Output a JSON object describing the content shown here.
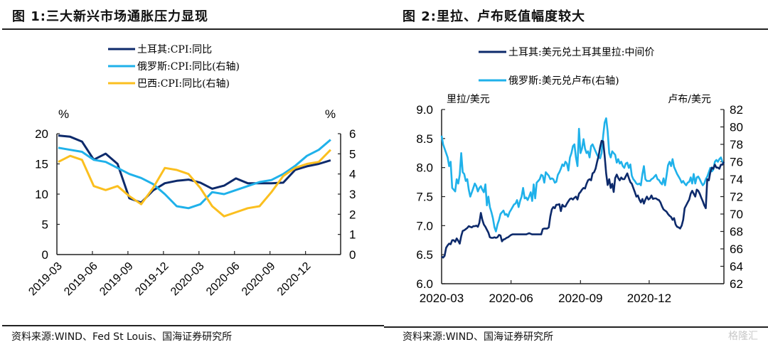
{
  "figure1": {
    "title": "图 1:三大新兴市场通胀压力显现",
    "source": "资料来源:WIND、Fed St Louis、国海证券研究所"
  },
  "figure2": {
    "title": "图 2:里拉、卢布贬值幅度较大",
    "source": "资料来源:WIND、国海证券研究所"
  },
  "watermark": "格隆汇",
  "chart_data": [
    {
      "type": "line",
      "title": "三大新兴市场通胀压力显现",
      "ylabel": "%",
      "y2label": "%",
      "ylim": [
        0,
        20
      ],
      "y2lim": [
        0,
        6
      ],
      "yticks": [
        "0",
        "5",
        "10",
        "15",
        "20"
      ],
      "y2ticks": [
        "0",
        "1",
        "2",
        "3",
        "4",
        "5",
        "6"
      ],
      "xticks": [
        "2019-03",
        "2019-06",
        "2019-09",
        "2019-12",
        "2020-03",
        "2020-06",
        "2020-09",
        "2020-12"
      ],
      "x": [
        "2019-03",
        "2019-04",
        "2019-05",
        "2019-06",
        "2019-07",
        "2019-08",
        "2019-09",
        "2019-10",
        "2019-11",
        "2019-12",
        "2020-01",
        "2020-02",
        "2020-03",
        "2020-04",
        "2020-05",
        "2020-06",
        "2020-07",
        "2020-08",
        "2020-09",
        "2020-10",
        "2020-11",
        "2020-12",
        "2021-01",
        "2021-02"
      ],
      "grid": false,
      "legend_position": "top-center",
      "series": [
        {
          "name": "土耳其:CPI:同比",
          "axis": "left",
          "color": "#0d2a6b",
          "values": [
            19.7,
            19.5,
            18.7,
            15.7,
            16.7,
            15.0,
            9.3,
            8.6,
            10.6,
            11.8,
            12.2,
            12.4,
            11.9,
            10.9,
            11.4,
            12.6,
            11.8,
            11.8,
            11.8,
            11.9,
            14.0,
            14.6,
            15.0,
            15.6
          ]
        },
        {
          "name": "俄罗斯:CPI:同比(右轴)",
          "axis": "right",
          "color": "#1fb1ea",
          "values": [
            5.3,
            5.2,
            5.1,
            4.7,
            4.6,
            4.3,
            4.0,
            3.8,
            3.5,
            3.0,
            2.4,
            2.3,
            2.5,
            3.1,
            3.0,
            3.2,
            3.4,
            3.6,
            3.7,
            4.0,
            4.4,
            4.9,
            5.2,
            5.7
          ]
        },
        {
          "name": "巴西:CPI:同比(右轴)",
          "axis": "right",
          "color": "#fbbf1f",
          "values": [
            4.6,
            4.9,
            4.7,
            3.4,
            3.2,
            3.4,
            2.9,
            2.5,
            3.3,
            4.3,
            4.2,
            4.0,
            3.3,
            2.4,
            1.9,
            2.1,
            2.3,
            2.4,
            3.1,
            3.9,
            4.3,
            4.5,
            4.6,
            5.2
          ]
        }
      ]
    },
    {
      "type": "line",
      "title": "里拉、卢布贬值幅度较大",
      "ylabel": "里拉/美元",
      "y2label": "卢布/美元",
      "ylim": [
        6.0,
        9.0
      ],
      "y2lim": [
        62,
        82
      ],
      "yticks": [
        "6.0",
        "6.5",
        "7.0",
        "7.5",
        "8.0",
        "8.5",
        "9.0"
      ],
      "y2ticks": [
        "62",
        "64",
        "66",
        "68",
        "70",
        "72",
        "74",
        "76",
        "78",
        "80",
        "82"
      ],
      "xticks": [
        "2020-03",
        "2020-06",
        "2020-09",
        "2020-12"
      ],
      "xrange": [
        "2020-03-01",
        "2021-03-10"
      ],
      "grid": false,
      "legend_position": "top-center",
      "series": [
        {
          "name": "土耳其:美元兑土耳其里拉:中间价",
          "axis": "left",
          "color": "#0d2a6b",
          "t": [
            0,
            2,
            4,
            6,
            8,
            10,
            12,
            14,
            16,
            18,
            20,
            22,
            24,
            26,
            28,
            30,
            32,
            34,
            36,
            38,
            40,
            42,
            44,
            46,
            48,
            50,
            52,
            54,
            56,
            58,
            60,
            62,
            64,
            66,
            68,
            70,
            72,
            74,
            76,
            78,
            80,
            82,
            84,
            86,
            88,
            90,
            92,
            94,
            96,
            98,
            100,
            102,
            104,
            106,
            108,
            110,
            112,
            114,
            116,
            118,
            120,
            122,
            124,
            126,
            128,
            130,
            132,
            134,
            136,
            138,
            140,
            142,
            144,
            146,
            148,
            150,
            152,
            154,
            156,
            158,
            160,
            162,
            164,
            166,
            168,
            170,
            172,
            174,
            176,
            178,
            180,
            182,
            184,
            186,
            188,
            190,
            192,
            194,
            196,
            198,
            200,
            202,
            204,
            206,
            208,
            210,
            212,
            214,
            216,
            218,
            220,
            222,
            224,
            226,
            228,
            230,
            232,
            234,
            236,
            238,
            240,
            242,
            244,
            246,
            248,
            250,
            252,
            254,
            256,
            258,
            260,
            262,
            264,
            266,
            268,
            270,
            272,
            274,
            276,
            278,
            280,
            282,
            284,
            286,
            288,
            290,
            292,
            294,
            296,
            298,
            300,
            302,
            304,
            306,
            308,
            310,
            312,
            314,
            316,
            318,
            320,
            322,
            324,
            326,
            328,
            330,
            332,
            334,
            336,
            338,
            340,
            342,
            344,
            346,
            348,
            350,
            352,
            354,
            356,
            358,
            360,
            362,
            364,
            366,
            368,
            370,
            372,
            374
          ],
          "values": [
            6.47,
            6.45,
            6.48,
            6.62,
            6.66,
            6.69,
            6.68,
            6.75,
            6.75,
            6.72,
            6.78,
            6.74,
            6.69,
            6.82,
            6.91,
            6.92,
            6.94,
            6.96,
            6.99,
            6.98,
            6.97,
            6.99,
            6.99,
            7.0,
            6.98,
            7.05,
            7.22,
            7.1,
            7.02,
            6.98,
            6.93,
            6.88,
            6.8,
            6.79,
            6.79,
            6.8,
            6.79,
            6.8,
            6.84,
            6.83,
            6.73,
            6.76,
            6.77,
            6.79,
            6.8,
            6.82,
            6.84,
            6.85,
            6.85,
            6.85,
            6.85,
            6.85,
            6.85,
            6.85,
            6.85,
            6.85,
            6.85,
            6.86,
            6.87,
            6.86,
            6.85,
            6.85,
            6.85,
            6.85,
            6.85,
            6.85,
            6.85,
            6.94,
            6.95,
            6.95,
            6.95,
            6.97,
            7.16,
            7.28,
            7.32,
            7.3,
            7.36,
            7.36,
            7.37,
            7.25,
            7.36,
            7.33,
            7.33,
            7.38,
            7.42,
            7.46,
            7.47,
            7.45,
            7.48,
            7.5,
            7.45,
            7.55,
            7.58,
            7.62,
            7.65,
            7.64,
            7.72,
            7.78,
            7.8,
            7.78,
            7.9,
            7.92,
            7.98,
            8.1,
            8.2,
            8.35,
            8.46,
            8.45,
            8.2,
            7.9,
            7.7,
            7.8,
            7.65,
            7.72,
            7.58,
            7.82,
            7.88,
            7.82,
            7.78,
            7.83,
            7.8,
            7.8,
            7.85,
            7.9,
            7.82,
            7.75,
            7.72,
            7.65,
            7.58,
            7.5,
            7.52,
            7.45,
            7.4,
            7.46,
            7.38,
            7.45,
            7.5,
            7.45,
            7.47,
            7.52,
            7.46,
            7.47,
            7.47,
            7.45,
            7.44,
            7.4,
            7.33,
            7.28,
            7.26,
            7.24,
            7.2,
            7.17,
            7.15,
            7.1,
            7.13,
            7.02,
            6.98,
            6.97,
            6.95,
            7.0,
            7.1,
            7.3,
            7.35,
            7.4,
            7.45,
            7.55,
            7.6,
            7.55,
            7.5,
            7.62,
            7.6,
            7.55,
            7.48,
            7.42,
            7.35,
            7.3,
            7.8,
            7.78,
            7.92,
            8.0,
            7.98,
            8.05,
            8.0,
            8.0,
            7.98,
            8.05,
            8.05,
            8.1
          ]
        },
        {
          "name": "俄罗斯:美元兑卢布(右轴)",
          "axis": "right",
          "color": "#1fb1ea",
          "t": [
            0,
            2,
            4,
            6,
            8,
            10,
            12,
            14,
            16,
            18,
            20,
            22,
            24,
            26,
            28,
            30,
            32,
            34,
            36,
            38,
            40,
            42,
            44,
            46,
            48,
            50,
            52,
            54,
            56,
            58,
            60,
            62,
            64,
            66,
            68,
            70,
            72,
            74,
            76,
            78,
            80,
            82,
            84,
            86,
            88,
            90,
            92,
            94,
            96,
            98,
            100,
            102,
            104,
            106,
            108,
            110,
            112,
            114,
            116,
            118,
            120,
            122,
            124,
            126,
            128,
            130,
            132,
            134,
            136,
            138,
            140,
            142,
            144,
            146,
            148,
            150,
            152,
            154,
            156,
            158,
            160,
            162,
            164,
            166,
            168,
            170,
            172,
            174,
            176,
            178,
            180,
            182,
            184,
            186,
            188,
            190,
            192,
            194,
            196,
            198,
            200,
            202,
            204,
            206,
            208,
            210,
            212,
            214,
            216,
            218,
            220,
            222,
            224,
            226,
            228,
            230,
            232,
            234,
            236,
            238,
            240,
            242,
            244,
            246,
            248,
            250,
            252,
            254,
            256,
            258,
            260,
            262,
            264,
            266,
            268,
            270,
            272,
            274,
            276,
            278,
            280,
            282,
            284,
            286,
            288,
            290,
            292,
            294,
            296,
            298,
            300,
            302,
            304,
            306,
            308,
            310,
            312,
            314,
            316,
            318,
            320,
            322,
            324,
            326,
            328,
            330,
            332,
            334,
            336,
            338,
            340,
            342,
            344,
            346,
            348,
            350,
            352,
            354,
            356,
            358,
            360,
            362,
            364,
            366,
            368,
            370,
            372,
            374
          ],
          "values": [
            79.0,
            78.0,
            77.5,
            77.0,
            76.5,
            75.5,
            76.0,
            73.0,
            72.8,
            72.6,
            74.0,
            73.5,
            74.5,
            77.0,
            74.8,
            74.6,
            73.8,
            74.0,
            72.8,
            72.0,
            72.5,
            73.0,
            73.5,
            73.2,
            72.6,
            73.0,
            73.2,
            72.8,
            72.5,
            73.4,
            71.0,
            72.0,
            70.8,
            70.2,
            69.5,
            68.5,
            68.0,
            68.8,
            69.3,
            70.0,
            70.2,
            70.4,
            69.9,
            70.0,
            69.7,
            70.2,
            70.5,
            70.8,
            71.1,
            71.2,
            71.6,
            70.8,
            71.5,
            72.0,
            73.0,
            71.8,
            71.9,
            71.6,
            72.0,
            72.5,
            71.5,
            73.4,
            71.8,
            73.6,
            73.8,
            74.0,
            74.5,
            74.4,
            73.6,
            74.8,
            74.6,
            74.4,
            74.0,
            74.1,
            74.0,
            73.6,
            73.7,
            74.5,
            74.8,
            75.2,
            75.7,
            75.5,
            76.0,
            75.8,
            75.0,
            76.5,
            77.0,
            77.8,
            78.0,
            76.5,
            75.5,
            79.8,
            77.0,
            77.5,
            78.6,
            77.5,
            77.0,
            77.2,
            76.5,
            77.8,
            78.0,
            77.6,
            77.2,
            76.8,
            76.5,
            76.4,
            77.0,
            79.0,
            80.5,
            81.0,
            79.5,
            77.0,
            76.5,
            77.2,
            77.0,
            76.8,
            75.9,
            76.3,
            75.8,
            76.0,
            75.5,
            75.3,
            75.8,
            75.9,
            75.3,
            75.7,
            74.4,
            74.0,
            73.8,
            73.5,
            73.4,
            73.5,
            73.3,
            74.6,
            75.5,
            74.0,
            73.8,
            73.8,
            73.8,
            74.0,
            74.1,
            74.3,
            74.5,
            74.0,
            73.9,
            73.6,
            73.4,
            74.1,
            73.3,
            74.4,
            75.6,
            76.0,
            75.5,
            76.3,
            75.4,
            75.0,
            74.6,
            74.3,
            74.0,
            73.6,
            73.8,
            73.5,
            73.3,
            73.6,
            73.7,
            74.2,
            73.5,
            74.6,
            73.5,
            74.2,
            74.3,
            74.0,
            73.6,
            73.3,
            73.5,
            74.0,
            74.3,
            74.8,
            75.3,
            74.9,
            75.1,
            76.0,
            76.2,
            76.0,
            76.3,
            76.5,
            76.0,
            75.8,
            76.2
          ]
        }
      ]
    }
  ]
}
